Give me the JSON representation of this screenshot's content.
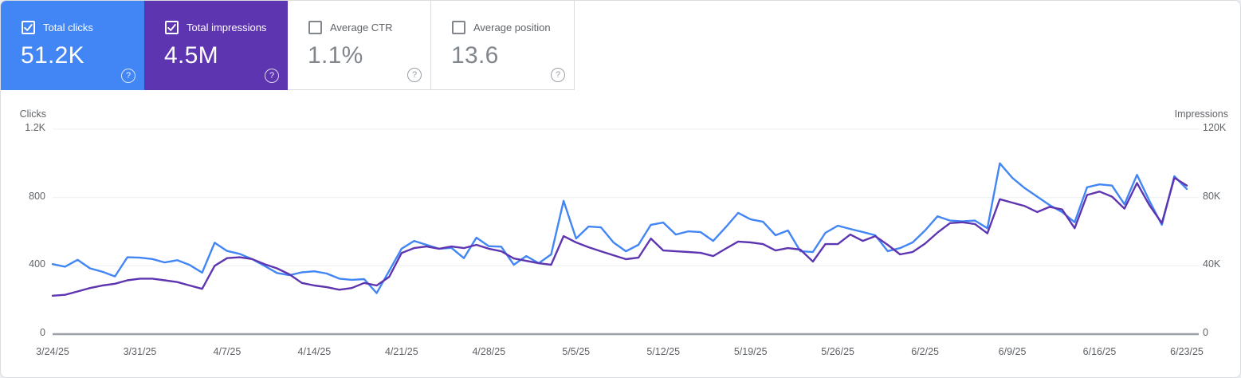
{
  "cards": [
    {
      "id": "total-clicks",
      "label": "Total clicks",
      "value": "51.2K",
      "checked": true,
      "accent": "#4285f4"
    },
    {
      "id": "total-impressions",
      "label": "Total impressions",
      "value": "4.5M",
      "checked": true,
      "accent": "#5e35b1"
    },
    {
      "id": "average-ctr",
      "label": "Average CTR",
      "value": "1.1%",
      "checked": false,
      "accent": ""
    },
    {
      "id": "average-position",
      "label": "Average position",
      "value": "13.6",
      "checked": false,
      "accent": ""
    }
  ],
  "icons": {
    "help_glyph": "?",
    "checkbox_checked": "checkmark-icon",
    "help": "question-mark-icon"
  },
  "colors": {
    "clicks_blue": "#4285f4",
    "impressions_purple": "#5e35b1",
    "axis_text": "#5f6368",
    "gridline": "#eceff1",
    "baseline": "#9aa0a6"
  },
  "chart_data": {
    "type": "line",
    "title": "",
    "grid": true,
    "x_tick_labels": [
      "3/24/25",
      "3/31/25",
      "4/7/25",
      "4/14/25",
      "4/21/25",
      "4/28/25",
      "5/5/25",
      "5/12/25",
      "5/19/25",
      "5/26/25",
      "6/2/25",
      "6/9/25",
      "6/16/25",
      "6/23/25"
    ],
    "x_tick_positions_days": [
      0,
      7,
      14,
      21,
      28,
      35,
      42,
      49,
      56,
      63,
      70,
      77,
      84,
      91
    ],
    "left_axis": {
      "title": "Clicks",
      "tick_labels": [
        "0",
        "400",
        "800",
        "1.2K"
      ],
      "max": 1200
    },
    "right_axis": {
      "title": "Impressions",
      "tick_labels": [
        "0",
        "40K",
        "80K",
        "120K"
      ],
      "max": 120000
    },
    "series": [
      {
        "name": "Total clicks",
        "axis": "left",
        "color": "#4285f4",
        "values": [
          410,
          395,
          435,
          385,
          365,
          338,
          450,
          448,
          440,
          420,
          433,
          405,
          360,
          535,
          487,
          470,
          440,
          400,
          358,
          345,
          362,
          368,
          355,
          325,
          318,
          322,
          240,
          370,
          500,
          546,
          523,
          500,
          505,
          445,
          565,
          515,
          512,
          406,
          457,
          415,
          467,
          780,
          560,
          630,
          625,
          537,
          485,
          523,
          640,
          653,
          583,
          602,
          597,
          546,
          625,
          710,
          672,
          658,
          579,
          607,
          485,
          481,
          593,
          635,
          616,
          598,
          579,
          486,
          504,
          537,
          607,
          690,
          665,
          660,
          665,
          620,
          1000,
          915,
          855,
          805,
          755,
          715,
          655,
          860,
          877,
          870,
          760,
          933,
          780,
          640,
          925,
          850
        ]
      },
      {
        "name": "Total impressions",
        "axis": "right",
        "color": "#5e35b1",
        "values": [
          22500,
          23000,
          25000,
          27000,
          28500,
          29500,
          31500,
          32500,
          32500,
          31500,
          30500,
          28500,
          26500,
          40000,
          44500,
          45000,
          44000,
          41000,
          38500,
          35000,
          30000,
          28500,
          27500,
          26000,
          27000,
          30000,
          28500,
          33500,
          47500,
          50400,
          51300,
          50000,
          51300,
          50400,
          52300,
          50000,
          48500,
          44300,
          42900,
          41500,
          40600,
          57400,
          53700,
          50900,
          48500,
          46200,
          43900,
          44800,
          56000,
          49000,
          48500,
          48100,
          47600,
          45700,
          50000,
          54200,
          53700,
          52700,
          49000,
          50400,
          49500,
          42500,
          52700,
          52700,
          58300,
          54600,
          57400,
          52300,
          46700,
          48100,
          53000,
          59500,
          65000,
          65500,
          64500,
          59000,
          79000,
          77000,
          75000,
          71500,
          74500,
          73000,
          62000,
          81500,
          83500,
          80500,
          73500,
          88500,
          75500,
          65000,
          91500,
          87000
        ]
      }
    ]
  }
}
